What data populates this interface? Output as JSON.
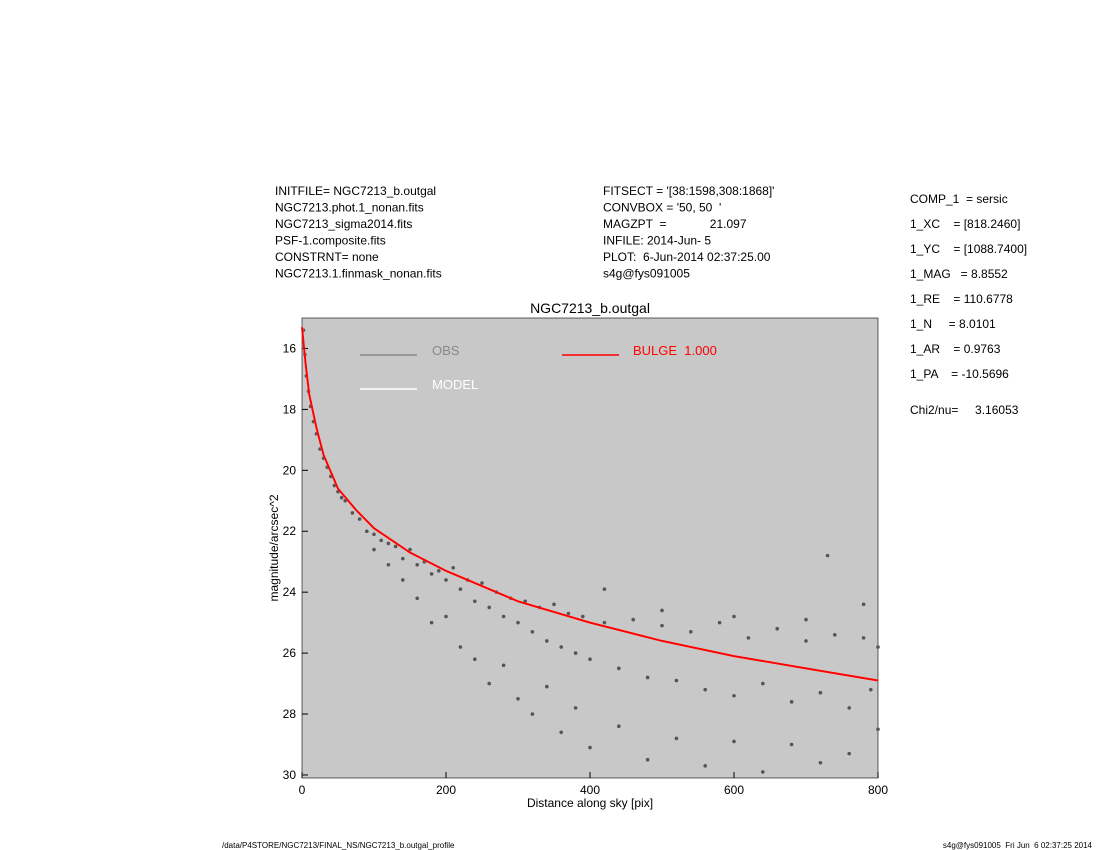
{
  "header_left": [
    "INITFILE= NGC7213_b.outgal",
    "NGC7213.phot.1_nonan.fits",
    "NGC7213_sigma2014.fits",
    "PSF-1.composite.fits",
    "CONSTRNT= none",
    "NGC7213.1.finmask_nonan.fits"
  ],
  "header_mid": [
    "FITSECT = '[38:1598,308:1868]'",
    "CONVBOX = '50, 50  '",
    "MAGZPT  =             21.097",
    "INFILE: 2014-Jun- 5",
    "PLOT:  6-Jun-2014 02:37:25.00",
    "s4g@fys091005"
  ],
  "params": [
    "COMP_1  = sersic",
    "1_XC    = [818.2460]",
    "1_YC    = [1088.7400]",
    "1_MAG   = 8.8552",
    "1_RE    = 110.6778",
    "1_N     = 8.0101",
    "1_AR    = 0.9763",
    "1_PA    = -10.5696",
    "Chi2/nu=     3.16053"
  ],
  "footer": {
    "left": "/data/P4STORE/NGC7213/FINAL_NS/NGC7213_b.outgal_profile",
    "right": "s4g@fys091005  Fri Jun  6 02:37:25 2014"
  },
  "chart_data": {
    "type": "scatter",
    "title": "NGC7213_b.outgal",
    "x_label": "Distance along sky [pix]",
    "y_label": "magnitude/arcsec^2",
    "xlim": [
      0,
      800
    ],
    "xticks": [
      0,
      200,
      400,
      600,
      800
    ],
    "ylim": [
      30.1,
      15.0
    ],
    "yticks": [
      16,
      18,
      20,
      22,
      24,
      26,
      28,
      30
    ],
    "background": "#c8c8c8",
    "series": [
      {
        "name": "OBS",
        "type": "scatter",
        "color": "#555555",
        "x": [
          2,
          4,
          6,
          9,
          12,
          16,
          20,
          25,
          30,
          35,
          40,
          45,
          50,
          55,
          60,
          70,
          80,
          90,
          100,
          100,
          110,
          120,
          120,
          130,
          140,
          140,
          150,
          160,
          160,
          170,
          180,
          180,
          190,
          200,
          200,
          210,
          220,
          220,
          230,
          240,
          240,
          250,
          260,
          260,
          270,
          280,
          280,
          290,
          300,
          300,
          310,
          320,
          320,
          330,
          340,
          340,
          350,
          360,
          360,
          370,
          380,
          380,
          390,
          400,
          400,
          420,
          440,
          440,
          460,
          480,
          480,
          500,
          520,
          520,
          540,
          560,
          560,
          580,
          600,
          600,
          620,
          640,
          640,
          660,
          680,
          680,
          700,
          720,
          720,
          730,
          740,
          760,
          760,
          780,
          790,
          800,
          800,
          420,
          500,
          600,
          700,
          780
        ],
        "values": [
          15.4,
          16.2,
          16.9,
          17.4,
          17.9,
          18.4,
          18.8,
          19.3,
          19.6,
          19.9,
          20.2,
          20.5,
          20.7,
          20.9,
          21.0,
          21.4,
          21.6,
          22.0,
          22.1,
          22.6,
          22.3,
          22.4,
          23.1,
          22.5,
          22.9,
          23.6,
          22.6,
          23.1,
          24.2,
          23.0,
          23.4,
          25.0,
          23.3,
          23.6,
          24.8,
          23.2,
          23.9,
          25.8,
          23.6,
          24.3,
          26.2,
          23.7,
          24.5,
          27.0,
          24.0,
          24.8,
          26.4,
          24.2,
          25.0,
          27.5,
          24.3,
          25.3,
          28.0,
          24.5,
          25.6,
          27.1,
          24.4,
          25.8,
          28.6,
          24.7,
          26.0,
          27.8,
          24.8,
          26.2,
          29.1,
          25.0,
          26.5,
          28.4,
          24.9,
          26.8,
          29.5,
          25.1,
          26.9,
          28.8,
          25.3,
          27.2,
          29.7,
          25.0,
          27.4,
          28.9,
          25.5,
          27.0,
          29.9,
          25.2,
          27.6,
          29.0,
          25.6,
          27.3,
          29.6,
          22.8,
          25.4,
          27.8,
          29.3,
          25.5,
          27.2,
          25.8,
          28.5,
          23.9,
          24.6,
          24.8,
          24.9,
          24.4
        ]
      },
      {
        "name": "MODEL",
        "type": "line",
        "color": "#ffffff",
        "x": [
          0,
          5,
          10,
          20,
          30,
          50,
          75,
          100,
          150,
          200,
          250,
          300,
          400,
          500,
          600,
          700,
          800
        ],
        "values": [
          15.3,
          16.5,
          17.5,
          18.6,
          19.5,
          20.6,
          21.3,
          21.9,
          22.7,
          23.3,
          23.8,
          24.3,
          25.0,
          25.6,
          26.1,
          26.5,
          26.9
        ]
      },
      {
        "name": "BULGE  1.000",
        "type": "line",
        "color": "#ff0000",
        "x": [
          0,
          5,
          10,
          20,
          30,
          50,
          75,
          100,
          150,
          200,
          250,
          300,
          400,
          500,
          600,
          700,
          800
        ],
        "values": [
          15.3,
          16.5,
          17.5,
          18.6,
          19.5,
          20.6,
          21.3,
          21.9,
          22.7,
          23.3,
          23.8,
          24.3,
          25.0,
          25.6,
          26.1,
          26.5,
          26.9
        ]
      }
    ]
  }
}
